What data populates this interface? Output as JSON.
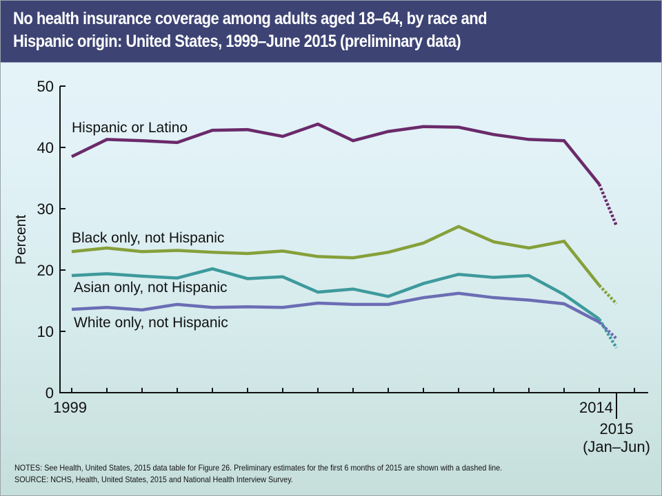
{
  "header": {
    "title": "No health insurance coverage among adults aged 18–64, by race and\nHispanic origin: United States, 1999–June 2015 (preliminary data)"
  },
  "colors": {
    "header_bg": "#3d4474",
    "hispanic": "#6a2a6a",
    "black": "#85a03a",
    "asian": "#3e9a9c",
    "white": "#6b6db4"
  },
  "chart_data": {
    "type": "line",
    "title": "No health insurance coverage among adults aged 18–64, by race and Hispanic origin: United States, 1999–June 2015 (preliminary data)",
    "xlabel": "",
    "ylabel": "Percent",
    "ylim": [
      0,
      50
    ],
    "yticks": [
      0,
      10,
      20,
      30,
      40,
      50
    ],
    "x": [
      "1999",
      "2000",
      "2001",
      "2002",
      "2003",
      "2004",
      "2005",
      "2006",
      "2007",
      "2008",
      "2009",
      "2010",
      "2011",
      "2012",
      "2013",
      "2014",
      "2015 (Jan–Jun)"
    ],
    "xtick_labels": [
      {
        "index": 0,
        "text": "1999"
      },
      {
        "index": 15,
        "text": "2014"
      },
      {
        "index": 16,
        "text": "2015",
        "subtext": "(Jan–Jun)"
      }
    ],
    "preliminary_note": "Final segment (2014 to 2015 Jan–Jun) is dashed (preliminary)",
    "grid": false,
    "legend": "inline labels",
    "series": [
      {
        "name": "Hispanic or Latino",
        "color_key": "hispanic",
        "values": [
          38.5,
          41.3,
          41.1,
          40.8,
          42.8,
          42.9,
          41.8,
          43.8,
          41.1,
          42.6,
          43.4,
          43.3,
          42.1,
          41.3,
          41.1,
          34.0,
          27.2
        ]
      },
      {
        "name": "Black only, not Hispanic",
        "color_key": "black",
        "values": [
          23.0,
          23.6,
          23.0,
          23.2,
          22.9,
          22.7,
          23.1,
          22.2,
          22.0,
          22.9,
          24.4,
          27.1,
          24.6,
          23.6,
          24.7,
          17.5,
          14.5
        ]
      },
      {
        "name": "Asian only, not Hispanic",
        "color_key": "asian",
        "values": [
          19.1,
          19.4,
          19.0,
          18.7,
          20.2,
          18.6,
          18.9,
          16.4,
          16.9,
          15.7,
          17.8,
          19.3,
          18.8,
          19.1,
          16.0,
          12.0,
          7.3
        ]
      },
      {
        "name": "White only, not Hispanic",
        "color_key": "white",
        "values": [
          13.6,
          13.9,
          13.5,
          14.4,
          13.9,
          14.0,
          13.9,
          14.6,
          14.4,
          14.4,
          15.5,
          16.2,
          15.5,
          15.1,
          14.5,
          11.5,
          8.8
        ]
      }
    ]
  },
  "notes": {
    "notes_line": "NOTES: See Health, United States, 2015 data table for Figure 26. Preliminary estimates for the first 6 months of 2015 are shown with a dashed line.",
    "source_line": "SOURCE: NCHS, Health, United States, 2015 and National Health Interview Survey."
  }
}
